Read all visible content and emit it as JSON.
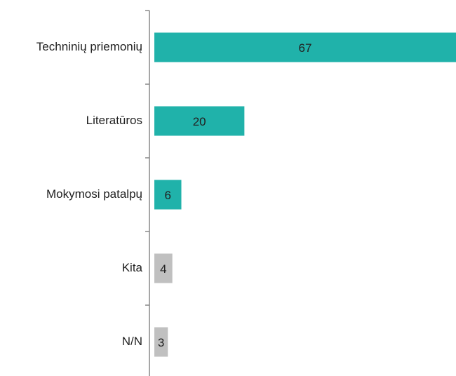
{
  "chart_data": {
    "type": "bar",
    "orientation": "horizontal",
    "categories": [
      "Techninių priemonių",
      "Literatūros",
      "Mokymosi patalpų",
      "Kita",
      "N/N"
    ],
    "values": [
      67,
      20,
      6,
      4,
      3
    ],
    "colors": [
      "#20b2aa",
      "#20b2aa",
      "#20b2aa",
      "#c0c0c0",
      "#c0c0c0"
    ]
  }
}
